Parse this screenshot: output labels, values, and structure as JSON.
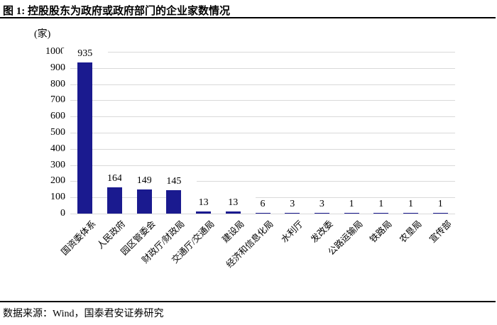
{
  "figure": {
    "title": "图 1:  控股股东为政府或政府部门的企业家数情况",
    "source": "数据来源：Wind，国泰君安证券研究"
  },
  "chart_data": {
    "type": "bar",
    "title": "控股股东为政府或政府部门的企业家数情况",
    "unit_label": "(家)",
    "categories": [
      "国资委体系",
      "人民政府",
      "园区管委会",
      "财政厅/财政局",
      "交通厅/交通局",
      "建设局",
      "经济和信息化局",
      "水利厅",
      "发改委",
      "公路运输局",
      "铁路局",
      "农垦局",
      "宣传部"
    ],
    "values": [
      935,
      164,
      149,
      145,
      13,
      13,
      6,
      3,
      3,
      1,
      1,
      1,
      1
    ],
    "value_labels_shown": true,
    "xlabel": "",
    "ylabel": "(家)",
    "ylim": [
      0,
      1000
    ],
    "ytick_step": 100,
    "grid": true,
    "legend": "none",
    "bar_color": "#1a1a8f",
    "gridline_color": "#d9d9d9"
  }
}
